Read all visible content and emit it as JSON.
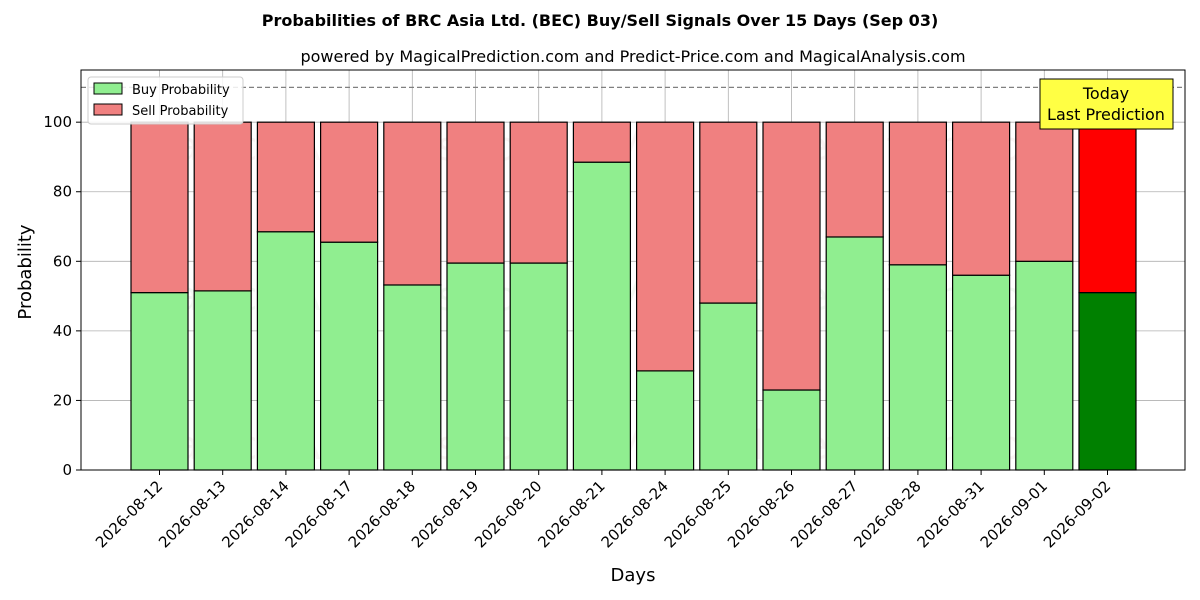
{
  "chart_data": {
    "type": "bar",
    "stacked": true,
    "title": "Probabilities of BRC Asia Ltd. (BEC) Buy/Sell Signals Over 15 Days (Sep 03)",
    "subtitle": "powered by MagicalPrediction.com and Predict-Price.com and MagicalAnalysis.com",
    "xlabel": "Days",
    "ylabel": "Probability",
    "ylim": [
      0,
      115
    ],
    "yticks": [
      0,
      20,
      40,
      60,
      80,
      100
    ],
    "grid": true,
    "legend_position": "top-left",
    "reference_line": 110,
    "categories": [
      "2026-08-12",
      "2026-08-13",
      "2026-08-14",
      "2026-08-17",
      "2026-08-18",
      "2026-08-19",
      "2026-08-20",
      "2026-08-21",
      "2026-08-24",
      "2026-08-25",
      "2026-08-26",
      "2026-08-27",
      "2026-08-28",
      "2026-08-31",
      "2026-09-01",
      "2026-09-02"
    ],
    "series": [
      {
        "name": "Buy Probability",
        "color": "#90ee90",
        "highlight_color": "#008000",
        "values": [
          51,
          51.5,
          68.5,
          65.5,
          53.2,
          59.5,
          59.5,
          88.5,
          28.5,
          48,
          23,
          67,
          59,
          56,
          60,
          51
        ]
      },
      {
        "name": "Sell Probability",
        "color": "#f08080",
        "highlight_color": "#ff0000",
        "values": [
          49,
          48.5,
          31.5,
          34.5,
          46.8,
          40.5,
          40.5,
          11.5,
          71.5,
          52,
          77,
          33,
          41,
          44,
          40,
          49
        ]
      }
    ],
    "highlight_index": 15,
    "annotation": {
      "line1": "Today",
      "line2": "Last Prediction",
      "bg": "#ffff44"
    },
    "watermarks": [
      "MagicalAnalysis.com",
      "MagicalPrediction.com"
    ]
  }
}
